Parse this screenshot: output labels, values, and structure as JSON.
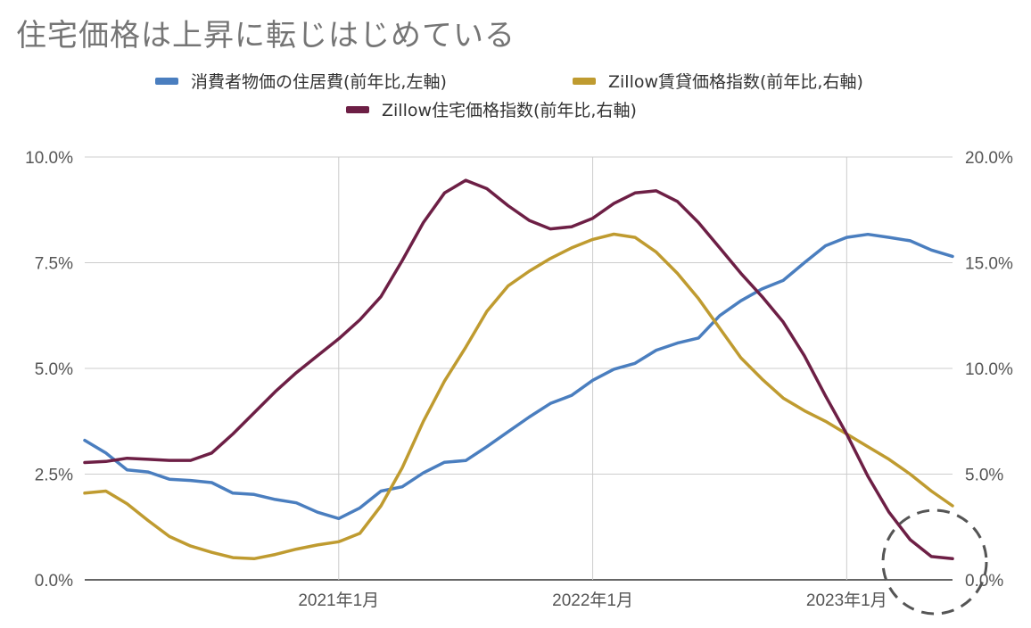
{
  "chart_data": {
    "type": "line",
    "title": "住宅価格は上昇に転じはじめている",
    "x_labels": [
      "2021年1月",
      "2022年1月",
      "2023年1月"
    ],
    "y_left_ticks": [
      "0.0%",
      "2.5%",
      "5.0%",
      "7.5%",
      "10.0%"
    ],
    "y_right_ticks": [
      "0.0%",
      "5.0%",
      "10.0%",
      "15.0%",
      "20.0%"
    ],
    "ylim_left": [
      0,
      10
    ],
    "ylim_right": [
      0,
      20
    ],
    "x_months": [
      "2020-01",
      "2020-02",
      "2020-03",
      "2020-04",
      "2020-05",
      "2020-06",
      "2020-07",
      "2020-08",
      "2020-09",
      "2020-10",
      "2020-11",
      "2020-12",
      "2021-01",
      "2021-02",
      "2021-03",
      "2021-04",
      "2021-05",
      "2021-06",
      "2021-07",
      "2021-08",
      "2021-09",
      "2021-10",
      "2021-11",
      "2021-12",
      "2022-01",
      "2022-02",
      "2022-03",
      "2022-04",
      "2022-05",
      "2022-06",
      "2022-07",
      "2022-08",
      "2022-09",
      "2022-10",
      "2022-11",
      "2022-12",
      "2023-01",
      "2023-02",
      "2023-03",
      "2023-04",
      "2023-05",
      "2023-06"
    ],
    "grid": true,
    "legend_position": "top",
    "annotation": "dashed circle around latest values",
    "series": [
      {
        "name": "消費者物価の住居費(前年比,左軸)",
        "axis": "left",
        "color": "#4a7ebf",
        "values": [
          3.3,
          3.0,
          2.6,
          2.55,
          2.38,
          2.35,
          2.3,
          2.05,
          2.02,
          1.9,
          1.82,
          1.6,
          1.45,
          1.7,
          2.1,
          2.2,
          2.53,
          2.78,
          2.82,
          3.15,
          3.5,
          3.85,
          4.17,
          4.36,
          4.72,
          4.98,
          5.12,
          5.43,
          5.6,
          5.72,
          6.25,
          6.6,
          6.88,
          7.08,
          7.5,
          7.9,
          8.1,
          8.17,
          8.1,
          8.02,
          7.8,
          7.65
        ]
      },
      {
        "name": "Zillow賃貸価格指数(前年比,右軸)",
        "axis": "right",
        "color": "#bf9b30",
        "values": [
          4.1,
          4.2,
          3.6,
          2.8,
          2.05,
          1.6,
          1.3,
          1.05,
          1.0,
          1.2,
          1.45,
          1.65,
          1.8,
          2.2,
          3.5,
          5.3,
          7.5,
          9.4,
          11.0,
          12.7,
          13.9,
          14.6,
          15.2,
          15.7,
          16.1,
          16.35,
          16.2,
          15.5,
          14.5,
          13.3,
          11.9,
          10.5,
          9.5,
          8.6,
          8.0,
          7.5,
          6.9,
          6.3,
          5.7,
          5.0,
          4.2,
          3.5
        ]
      },
      {
        "name": "Zillow住宅価格指数(前年比,右軸)",
        "axis": "right",
        "color": "#6d1f45",
        "values": [
          5.55,
          5.6,
          5.75,
          5.7,
          5.65,
          5.65,
          6.0,
          6.9,
          7.9,
          8.9,
          9.8,
          10.6,
          11.4,
          12.3,
          13.4,
          15.1,
          16.9,
          18.3,
          18.9,
          18.5,
          17.7,
          17.0,
          16.6,
          16.7,
          17.1,
          17.8,
          18.3,
          18.4,
          17.9,
          16.9,
          15.7,
          14.5,
          13.4,
          12.2,
          10.6,
          8.7,
          6.9,
          4.9,
          3.2,
          1.9,
          1.1,
          1.0
        ]
      }
    ]
  }
}
